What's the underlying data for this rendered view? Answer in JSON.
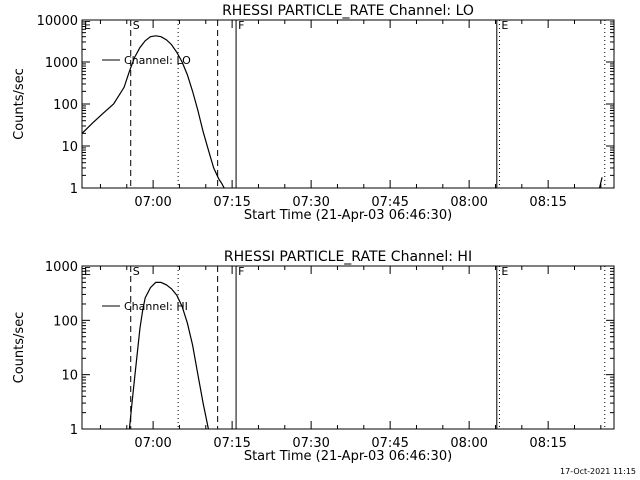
{
  "colors": {
    "background": "#ffffff",
    "foreground": "#000000"
  },
  "footer": {
    "timestamp": "17-Oct-2021 11:15"
  },
  "chart_data": [
    {
      "type": "line",
      "title": "RHESSI PARTICLE_RATE Channel: LO",
      "xlabel": "Start Time (21-Apr-03 06:46:30)",
      "ylabel": "Counts/sec",
      "xlim": [
        "06:46:30",
        "08:27:30"
      ],
      "ylim": [
        1,
        10000
      ],
      "yscale": "log",
      "x_ticks": [
        "07:00",
        "07:15",
        "07:30",
        "07:45",
        "08:00",
        "08:15"
      ],
      "y_ticks": [
        "1",
        "10",
        "100",
        "1000",
        "10000"
      ],
      "legend": {
        "entries": [
          "Channel: LO"
        ],
        "placement": "top-left"
      },
      "series": [
        {
          "name": "Channel: LO",
          "x": [
            "06:46:30",
            "06:48:30",
            "06:50:30",
            "06:52:30",
            "06:54:30",
            "06:55:30",
            "06:56:30",
            "06:57:30",
            "06:58:30",
            "06:59:30",
            "07:00:30",
            "07:01:30",
            "07:02:30",
            "07:03:30",
            "07:04:30",
            "07:05:30",
            "07:06:30",
            "07:07:30",
            "07:08:30",
            "07:09:30",
            "07:10:30",
            "07:11:30",
            "07:12:30",
            "07:13:00",
            "07:13:30"
          ],
          "y": [
            20,
            35,
            60,
            100,
            250,
            600,
            1300,
            2200,
            3200,
            4000,
            4200,
            4000,
            3400,
            2600,
            1700,
            1000,
            500,
            200,
            70,
            22,
            8,
            3,
            1.6,
            1.3,
            1
          ]
        },
        {
          "name": "",
          "x": [
            "08:24:45",
            "08:25:15"
          ],
          "y": [
            1,
            1.8
          ]
        }
      ],
      "vertical_markers": [
        {
          "label": "E",
          "x": "06:46:30",
          "style": "solid"
        },
        {
          "label": "S",
          "x": "06:55:45",
          "style": "dashed"
        },
        {
          "label": "",
          "x": "07:04:45",
          "style": "dotted"
        },
        {
          "label": "",
          "x": "07:12:15",
          "style": "dashed"
        },
        {
          "label": "F",
          "x": "07:15:45",
          "style": "solid"
        },
        {
          "label": "",
          "x": "08:05:15",
          "style": "solid"
        },
        {
          "label": "E",
          "x": "08:05:45",
          "style": "dotted"
        },
        {
          "label": "",
          "x": "08:25:45",
          "style": "dotted"
        }
      ]
    },
    {
      "type": "line",
      "title": "RHESSI PARTICLE_RATE Channel: HI",
      "xlabel": "Start Time (21-Apr-03 06:46:30)",
      "ylabel": "Counts/sec",
      "xlim": [
        "06:46:30",
        "08:27:30"
      ],
      "ylim": [
        1,
        1000
      ],
      "yscale": "log",
      "x_ticks": [
        "07:00",
        "07:15",
        "07:30",
        "07:45",
        "08:00",
        "08:15"
      ],
      "y_ticks": [
        "1",
        "10",
        "100",
        "1000"
      ],
      "legend": {
        "entries": [
          "Channel: HI"
        ],
        "placement": "top-left"
      },
      "series": [
        {
          "name": "Channel: HI",
          "x": [
            "06:55:30",
            "06:56:00",
            "06:56:30",
            "06:57:00",
            "06:57:30",
            "06:58:00",
            "06:58:30",
            "06:59:30",
            "07:00:30",
            "07:01:30",
            "07:02:30",
            "07:03:30",
            "07:04:30",
            "07:05:30",
            "07:06:30",
            "07:07:30",
            "07:08:30",
            "07:09:30",
            "07:10:30"
          ],
          "y": [
            1,
            3,
            9,
            25,
            70,
            150,
            260,
            400,
            500,
            500,
            450,
            380,
            290,
            180,
            90,
            35,
            10,
            3,
            1
          ]
        }
      ],
      "vertical_markers": [
        {
          "label": "E",
          "x": "06:46:30",
          "style": "solid"
        },
        {
          "label": "S",
          "x": "06:55:45",
          "style": "dashed"
        },
        {
          "label": "",
          "x": "07:04:45",
          "style": "dotted"
        },
        {
          "label": "",
          "x": "07:12:15",
          "style": "dashed"
        },
        {
          "label": "F",
          "x": "07:15:45",
          "style": "solid"
        },
        {
          "label": "",
          "x": "08:05:15",
          "style": "solid"
        },
        {
          "label": "E",
          "x": "08:05:45",
          "style": "dotted"
        },
        {
          "label": "",
          "x": "08:25:45",
          "style": "dotted"
        }
      ]
    }
  ]
}
